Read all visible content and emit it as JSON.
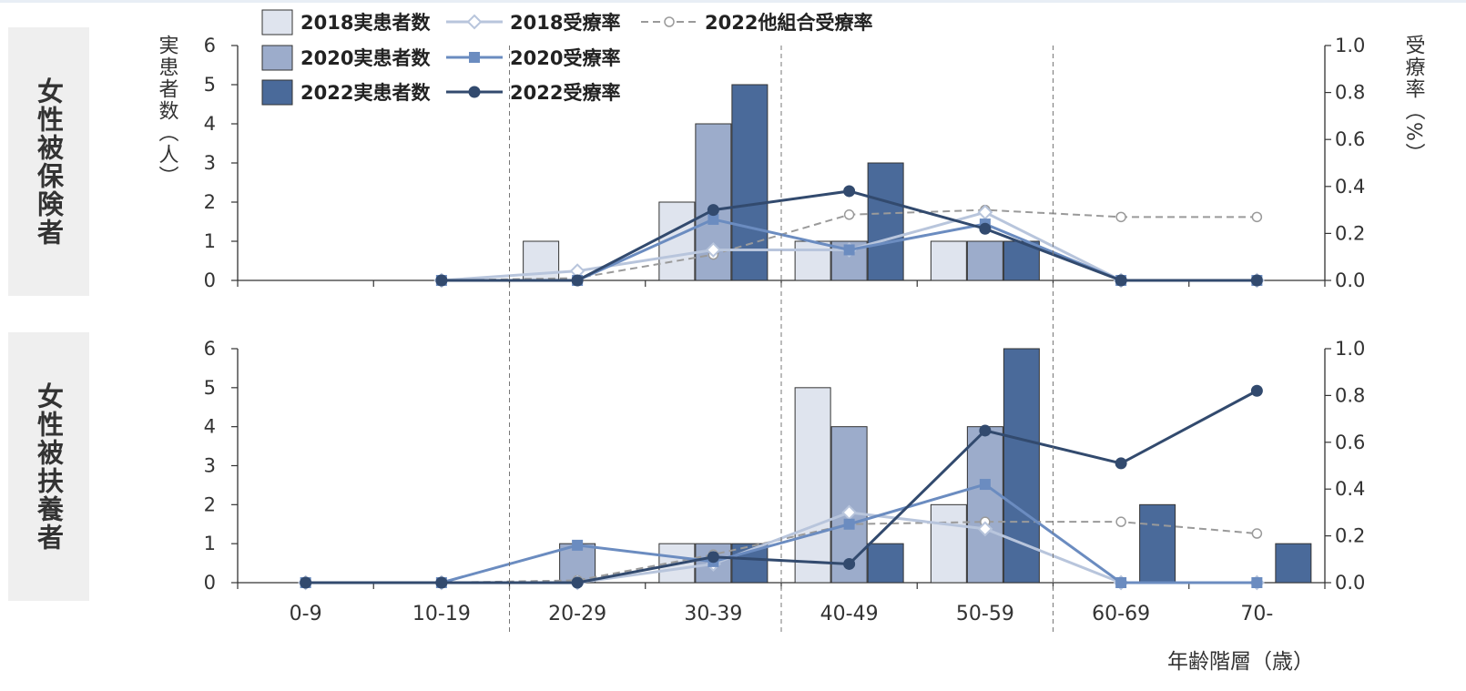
{
  "panels": [
    {
      "label": "女性被保険者"
    },
    {
      "label": "女性被扶養者"
    }
  ],
  "chart_data": {
    "type": "bar",
    "categories": [
      "0-9",
      "10-19",
      "20-29",
      "30-39",
      "40-49",
      "50-59",
      "60-69",
      "70-"
    ],
    "xlabel": "年齢階層（歳）",
    "ylabel_left": "実患者数（人）",
    "ylabel_right": "受療率（%）",
    "ylim_left": [
      0,
      6
    ],
    "ylim_right": [
      0,
      1.0
    ],
    "left_ticks": [
      "0",
      "1",
      "2",
      "3",
      "4",
      "5",
      "6"
    ],
    "right_ticks": [
      "0.0",
      "0.2",
      "0.4",
      "0.6",
      "0.8",
      "1.0"
    ],
    "legend": [
      {
        "name": "2018実患者数",
        "kind": "bar",
        "color": "#dfe4ee"
      },
      {
        "name": "2020実患者数",
        "kind": "bar",
        "color": "#9caccb"
      },
      {
        "name": "2022実患者数",
        "kind": "bar",
        "color": "#4a6a9a"
      },
      {
        "name": "2018受療率",
        "kind": "line",
        "marker": "diamond",
        "color": "#b8c5dc"
      },
      {
        "name": "2020受療率",
        "kind": "line",
        "marker": "square",
        "color": "#6b8cc0"
      },
      {
        "name": "2022受療率",
        "kind": "line",
        "marker": "circle",
        "color": "#324a6e"
      },
      {
        "name": "2022他組合受療率",
        "kind": "dashed",
        "marker": "open-circle",
        "color": "#9a9a9a"
      }
    ],
    "charts": [
      {
        "panel": "女性被保険者",
        "bars": [
          {
            "name": "2018実患者数",
            "values": [
              0,
              0,
              1,
              2,
              1,
              1,
              0,
              0
            ]
          },
          {
            "name": "2020実患者数",
            "values": [
              0,
              0,
              0,
              4,
              1,
              1,
              0,
              0
            ]
          },
          {
            "name": "2022実患者数",
            "values": [
              0,
              0,
              0,
              5,
              3,
              1,
              0,
              0
            ]
          }
        ],
        "lines": [
          {
            "name": "2018受療率",
            "values": [
              null,
              0.0,
              0.04,
              0.13,
              0.13,
              0.29,
              0.0,
              0.0
            ]
          },
          {
            "name": "2020受療率",
            "values": [
              null,
              0.0,
              0.0,
              0.26,
              0.13,
              0.24,
              0.0,
              0.0
            ]
          },
          {
            "name": "2022受療率",
            "values": [
              null,
              0.0,
              0.0,
              0.3,
              0.38,
              0.22,
              0.0,
              0.0
            ]
          },
          {
            "name": "2022他組合受療率",
            "values": [
              null,
              0.0,
              0.01,
              0.11,
              0.28,
              0.3,
              0.27,
              0.27
            ]
          }
        ]
      },
      {
        "panel": "女性被扶養者",
        "bars": [
          {
            "name": "2018実患者数",
            "values": [
              0,
              0,
              0,
              1,
              5,
              2,
              0,
              0
            ]
          },
          {
            "name": "2020実患者数",
            "values": [
              0,
              0,
              1,
              1,
              4,
              4,
              0,
              0
            ]
          },
          {
            "name": "2022実患者数",
            "values": [
              0,
              0,
              0,
              1,
              1,
              6,
              2,
              1
            ]
          }
        ],
        "lines": [
          {
            "name": "2018受療率",
            "values": [
              0.0,
              0.0,
              0.0,
              0.08,
              0.3,
              0.23,
              0.0,
              0.0
            ]
          },
          {
            "name": "2020受療率",
            "values": [
              0.0,
              0.0,
              0.16,
              0.09,
              0.25,
              0.42,
              0.0,
              0.0
            ]
          },
          {
            "name": "2022受療率",
            "values": [
              0.0,
              0.0,
              0.0,
              0.11,
              0.08,
              0.65,
              0.51,
              0.82
            ]
          },
          {
            "name": "2022他組合受療率",
            "values": [
              0.0,
              0.0,
              0.01,
              0.12,
              0.25,
              0.26,
              0.26,
              0.21
            ]
          }
        ]
      }
    ]
  }
}
